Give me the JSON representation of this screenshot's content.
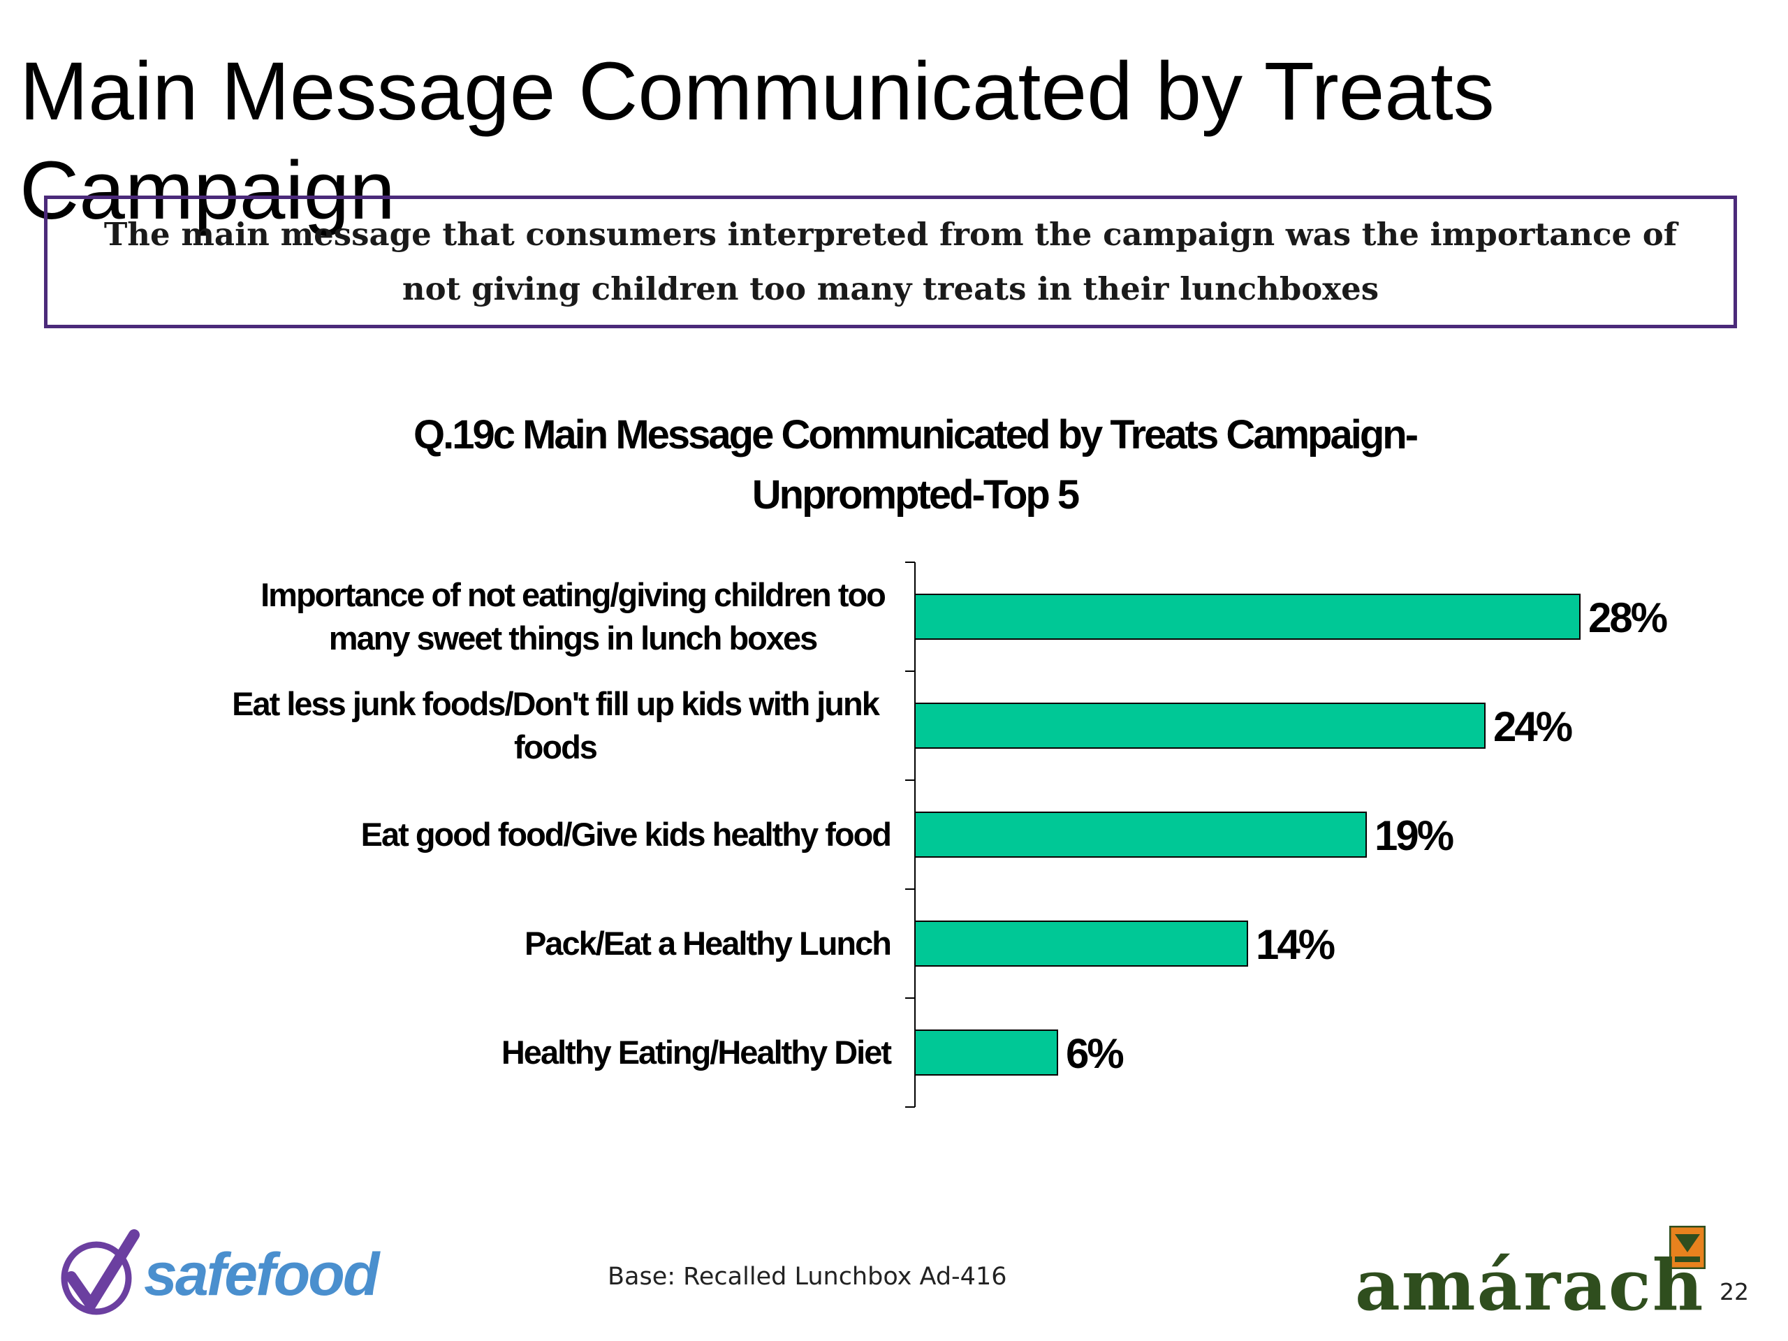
{
  "slide": {
    "title": "Main Message Communicated by Treats Campaign",
    "callout": "The main message that consumers interpreted from the campaign was the importance of not giving children too many treats in their lunchboxes",
    "base_note": "Base: Recalled Lunchbox Ad-416",
    "page_number": "22",
    "logo_left_text": "safefood",
    "logo_right_text": "amárach"
  },
  "colors": {
    "bar": "#00c896",
    "callout_border": "#4b2a7a",
    "safefood_blue": "#4a8fce",
    "safefood_purple": "#6b3fa0",
    "amarach_green": "#2f4e1e",
    "amarach_orange": "#e8821e"
  },
  "chart_data": {
    "type": "bar",
    "orientation": "horizontal",
    "title": "Q.19c Main Message Communicated by Treats Campaign-Unprompted-Top 5",
    "title_lines": [
      "Q.19c Main Message Communicated by Treats Campaign-",
      "Unprompted-Top 5"
    ],
    "categories": [
      "Importance of not eating/giving children too many sweet things in lunch boxes",
      "Eat less junk foods/Don't fill up kids with junk foods",
      "Eat good food/Give kids healthy food",
      "Pack/Eat a Healthy Lunch",
      "Healthy Eating/Healthy Diet"
    ],
    "category_lines": [
      [
        "Importance of not eating/giving children too",
        "many sweet things in lunch boxes"
      ],
      [
        "Eat less junk foods/Don't fill up kids with junk",
        "foods"
      ],
      [
        "Eat good food/Give kids healthy food"
      ],
      [
        "Pack/Eat a Healthy Lunch"
      ],
      [
        "Healthy Eating/Healthy Diet"
      ]
    ],
    "values": [
      28,
      24,
      19,
      14,
      6
    ],
    "value_labels": [
      "28%",
      "24%",
      "19%",
      "14%",
      "6%"
    ],
    "unit": "%",
    "xlim": [
      0,
      31
    ],
    "grid": false,
    "legend": "none"
  }
}
